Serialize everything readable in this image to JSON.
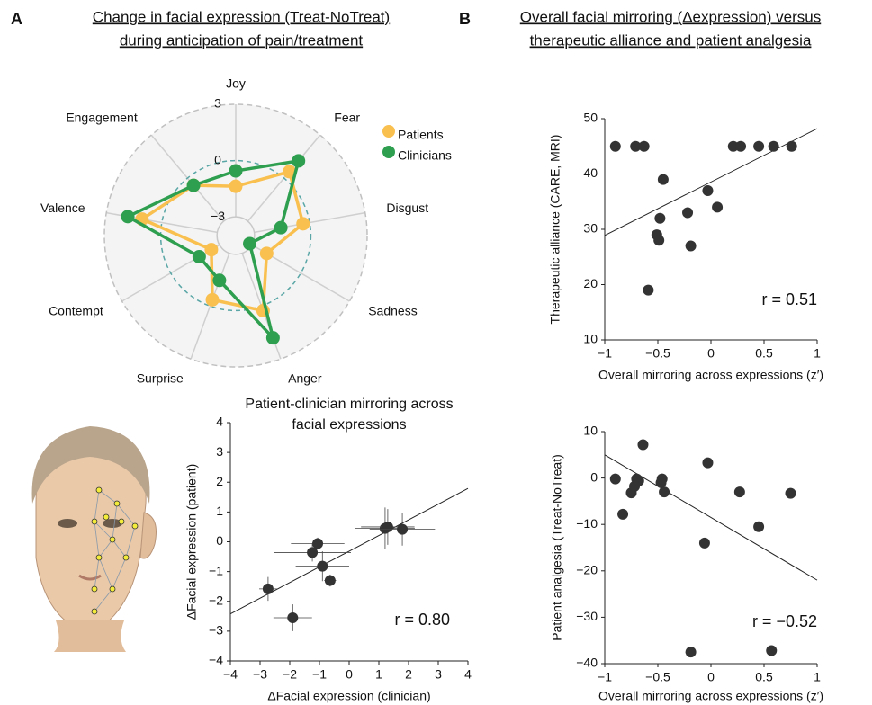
{
  "panels": [
    {
      "label": "A",
      "title": [
        "Change in facial expression (Treat-NoTreat)",
        "during anticipation of pain/treatment"
      ]
    },
    {
      "label": "B",
      "title": [
        "Overall facial mirroring (Δexpression) versus",
        "therapeutic alliance and patient analgesia"
      ]
    }
  ],
  "chart_data": [
    {
      "type": "radar",
      "categories": [
        "Joy",
        "Fear",
        "Disgust",
        "Sadness",
        "Anger",
        "Surprise",
        "Contempt",
        "Valence",
        "Engagement"
      ],
      "rlim": [
        -4,
        3
      ],
      "rticks": [
        {
          "value": -3,
          "label": "−3"
        },
        0,
        3
      ],
      "legend": "top-right",
      "series": [
        {
          "name": "Patients",
          "color": "#f9bf4f",
          "values": [
            -1.37,
            0.45,
            -0.36,
            -2.1,
            0.26,
            -0.36,
            -2.5,
            1.07,
            -0.5
          ]
        },
        {
          "name": "Clinicians",
          "color": "#2e9e4f",
          "values": [
            -0.55,
            1.2,
            -1.56,
            -3.14,
            1.8,
            -1.46,
            -1.75,
            1.84,
            -0.5
          ]
        }
      ]
    },
    {
      "type": "scatter",
      "title": [
        "Patient-clinician mirroring across",
        "facial expressions"
      ],
      "xlabel": "ΔFacial expression (clinician)",
      "ylabel": "ΔFacial expression (patient)",
      "annotation": "r = 0.80",
      "x": [
        -2.73,
        -1.9,
        -1.06,
        -1.24,
        -0.9,
        -0.64,
        1.21,
        1.3,
        1.79
      ],
      "y": [
        -1.58,
        -2.55,
        -0.06,
        -0.36,
        -0.82,
        -1.3,
        0.45,
        0.5,
        0.42
      ],
      "xerr": [
        0.3,
        0.65,
        0.9,
        1.3,
        0.9,
        0.2,
        1.0,
        0.9,
        1.1
      ],
      "yerr": [
        0.4,
        0.45,
        0.2,
        0.3,
        0.5,
        0.2,
        0.7,
        0.6,
        0.55
      ],
      "fit": {
        "x": [
          -4,
          4
        ],
        "y": [
          -2.42,
          1.79
        ]
      },
      "color": "#333333",
      "xlim": [
        -4,
        4
      ],
      "ylim": [
        -4,
        4
      ],
      "xticks": [
        {
          "value": -4,
          "label": "−4"
        },
        {
          "value": -3,
          "label": "−3"
        },
        {
          "value": -2,
          "label": "−2"
        },
        {
          "value": -1,
          "label": "−1"
        },
        0,
        1,
        2,
        3,
        4
      ],
      "yticks": [
        {
          "value": -4,
          "label": "−4"
        },
        {
          "value": -3,
          "label": "−3"
        },
        {
          "value": -2,
          "label": "−2"
        },
        {
          "value": -1,
          "label": "−1"
        },
        0,
        1,
        2,
        3,
        4
      ]
    },
    {
      "type": "scatter",
      "xlabel": "Overall mirroring across expressions (z′)",
      "ylabel": "Therapeutic alliance (CARE, MRI)",
      "annotation": "r = 0.51",
      "x": [
        -0.9,
        -0.71,
        -0.63,
        0.21,
        0.28,
        0.45,
        0.59,
        0.76,
        -0.45,
        -0.48,
        -0.51,
        -0.49,
        -0.59,
        -0.22,
        -0.19,
        -0.03,
        0.06
      ],
      "y": [
        45,
        45,
        45,
        45,
        45,
        45,
        45,
        45,
        39,
        32,
        29,
        28,
        19,
        33,
        27,
        37,
        34
      ],
      "fit": {
        "x": [
          -1,
          1
        ],
        "y": [
          28.9,
          48.2
        ]
      },
      "color": "#333333",
      "xlim": [
        -1,
        1
      ],
      "ylim": [
        10,
        50
      ],
      "xticks": [
        {
          "value": -1,
          "label": "−1"
        },
        {
          "value": -0.5,
          "label": "−0.5"
        },
        0,
        0.5,
        1
      ],
      "yticks": [
        10,
        20,
        30,
        40,
        50
      ]
    },
    {
      "type": "scatter",
      "xlabel": "Overall mirroring across expressions (z′)",
      "ylabel": "Patient analgesia (Treat-NoTreat)",
      "annotation": "r = −0.52",
      "x": [
        -0.9,
        -0.83,
        -0.75,
        -0.72,
        -0.7,
        -0.68,
        -0.64,
        -0.47,
        -0.44,
        -0.46,
        -0.03,
        -0.19,
        -0.06,
        0.27,
        0.45,
        0.57,
        0.75
      ],
      "y": [
        -0.2,
        -7.8,
        -3.2,
        -1.8,
        -0.2,
        -0.6,
        7.2,
        -1,
        -3,
        -0.2,
        3.3,
        -37.5,
        -14,
        -3,
        -10.5,
        -37.2,
        -3.3
      ],
      "fit": {
        "x": [
          -1,
          1
        ],
        "y": [
          5,
          -22
        ]
      },
      "color": "#333333",
      "xlim": [
        -1,
        1
      ],
      "ylim": [
        -40,
        10
      ],
      "xticks": [
        {
          "value": -1,
          "label": "−1"
        },
        {
          "value": -0.5,
          "label": "−0.5"
        },
        0,
        0.5,
        1
      ],
      "yticks": [
        {
          "value": -40,
          "label": "−40"
        },
        {
          "value": -30,
          "label": "−30"
        },
        {
          "value": -20,
          "label": "−20"
        },
        {
          "value": -10,
          "label": "−10"
        },
        0,
        10
      ]
    }
  ]
}
